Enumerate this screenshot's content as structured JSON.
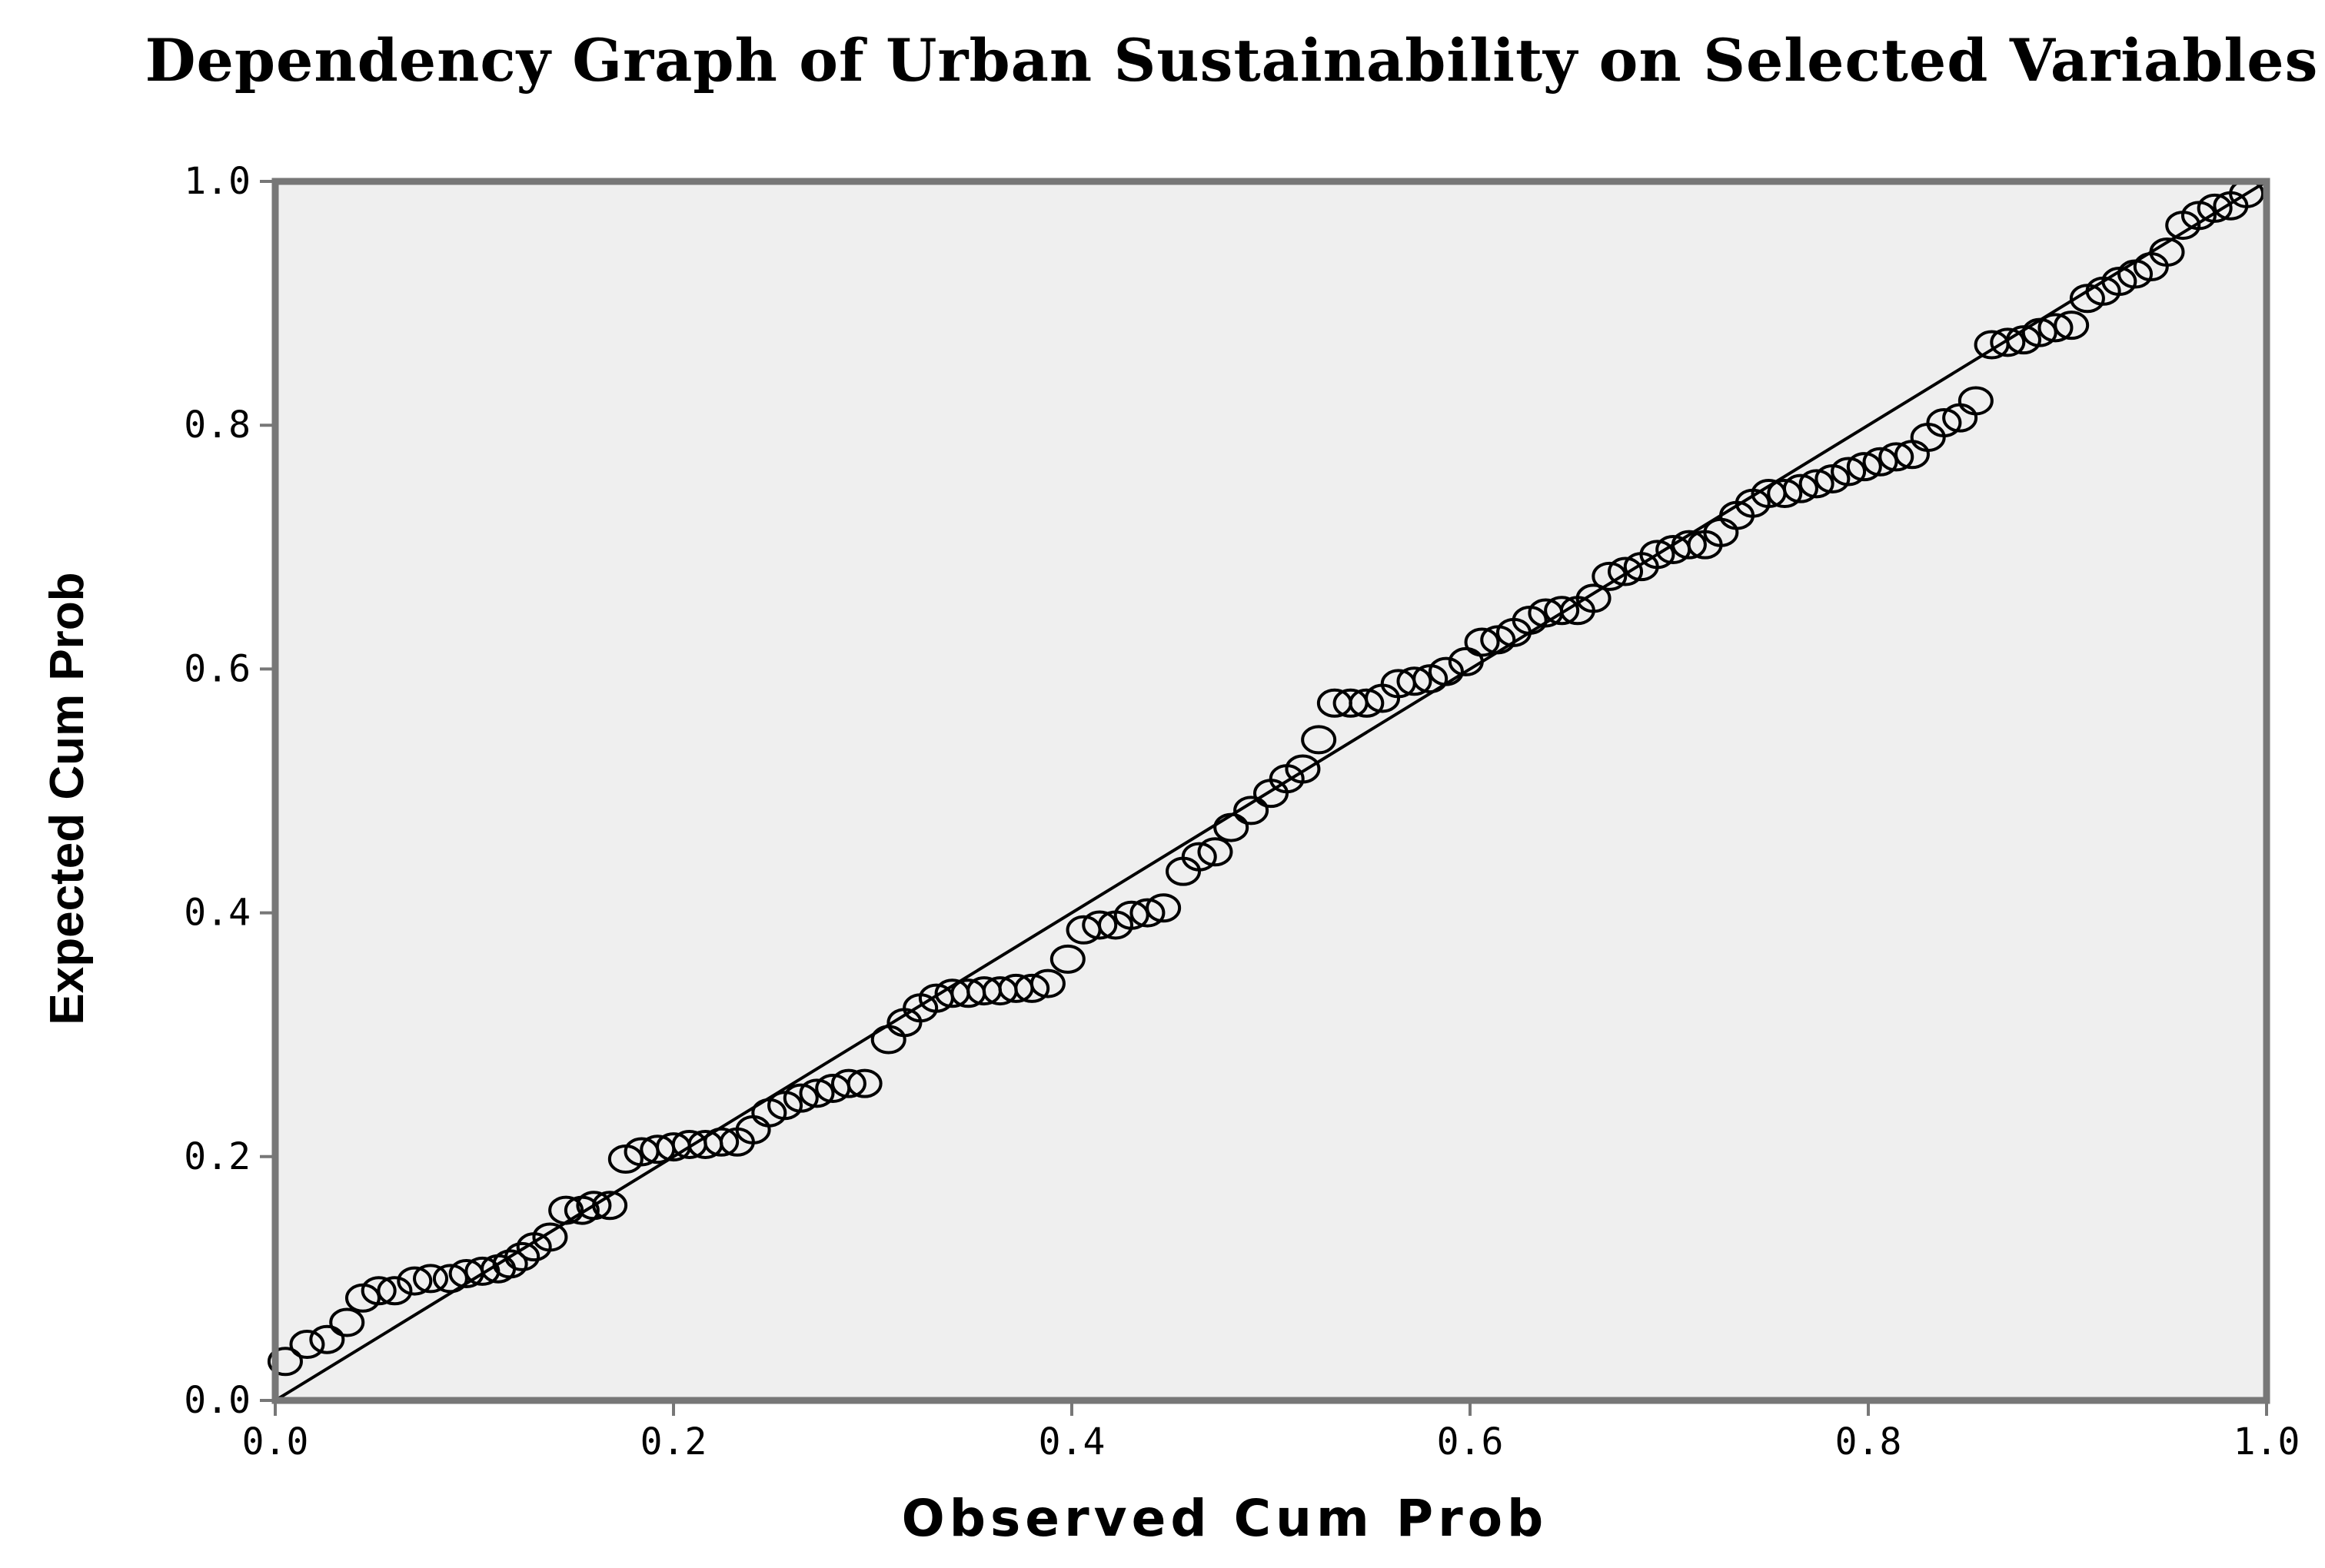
{
  "chart_data": {
    "type": "scatter",
    "title": "Dependency Graph of Urban Sustainability on Selected Variables",
    "xlabel": "Observed Cum Prob",
    "ylabel": "Expected Cum Prob",
    "xlim": [
      0,
      1
    ],
    "ylim": [
      0,
      1
    ],
    "xticks": [
      "0.0",
      "0.2",
      "0.4",
      "0.6",
      "0.8",
      "1.0"
    ],
    "yticks": [
      "0.0",
      "0.2",
      "0.4",
      "0.6",
      "0.8",
      "1.0"
    ],
    "reference_line": {
      "from": [
        0,
        0
      ],
      "to": [
        1,
        1
      ]
    },
    "grid": false,
    "legend": "none",
    "colors": {
      "plot_background": "#efefef",
      "frame": "#777777",
      "marker": "#000000",
      "line": "#000000"
    },
    "points": [
      [
        0.005,
        0.032
      ],
      [
        0.016,
        0.046
      ],
      [
        0.026,
        0.05
      ],
      [
        0.036,
        0.064
      ],
      [
        0.044,
        0.084
      ],
      [
        0.052,
        0.09
      ],
      [
        0.06,
        0.09
      ],
      [
        0.07,
        0.098
      ],
      [
        0.078,
        0.1
      ],
      [
        0.088,
        0.1
      ],
      [
        0.096,
        0.104
      ],
      [
        0.104,
        0.106
      ],
      [
        0.112,
        0.108
      ],
      [
        0.118,
        0.112
      ],
      [
        0.124,
        0.118
      ],
      [
        0.13,
        0.126
      ],
      [
        0.138,
        0.134
      ],
      [
        0.146,
        0.156
      ],
      [
        0.154,
        0.156
      ],
      [
        0.16,
        0.16
      ],
      [
        0.168,
        0.16
      ],
      [
        0.176,
        0.198
      ],
      [
        0.184,
        0.204
      ],
      [
        0.192,
        0.206
      ],
      [
        0.2,
        0.208
      ],
      [
        0.208,
        0.21
      ],
      [
        0.216,
        0.21
      ],
      [
        0.224,
        0.212
      ],
      [
        0.232,
        0.212
      ],
      [
        0.24,
        0.222
      ],
      [
        0.248,
        0.236
      ],
      [
        0.256,
        0.242
      ],
      [
        0.264,
        0.248
      ],
      [
        0.272,
        0.252
      ],
      [
        0.28,
        0.256
      ],
      [
        0.288,
        0.26
      ],
      [
        0.296,
        0.26
      ],
      [
        0.308,
        0.296
      ],
      [
        0.316,
        0.31
      ],
      [
        0.324,
        0.322
      ],
      [
        0.332,
        0.33
      ],
      [
        0.34,
        0.334
      ],
      [
        0.348,
        0.334
      ],
      [
        0.356,
        0.336
      ],
      [
        0.364,
        0.336
      ],
      [
        0.372,
        0.338
      ],
      [
        0.38,
        0.338
      ],
      [
        0.388,
        0.342
      ],
      [
        0.398,
        0.362
      ],
      [
        0.406,
        0.386
      ],
      [
        0.414,
        0.39
      ],
      [
        0.422,
        0.39
      ],
      [
        0.43,
        0.398
      ],
      [
        0.438,
        0.4
      ],
      [
        0.446,
        0.404
      ],
      [
        0.456,
        0.434
      ],
      [
        0.464,
        0.446
      ],
      [
        0.472,
        0.45
      ],
      [
        0.48,
        0.47
      ],
      [
        0.49,
        0.484
      ],
      [
        0.5,
        0.498
      ],
      [
        0.508,
        0.51
      ],
      [
        0.516,
        0.518
      ],
      [
        0.524,
        0.542
      ],
      [
        0.532,
        0.572
      ],
      [
        0.54,
        0.572
      ],
      [
        0.548,
        0.572
      ],
      [
        0.556,
        0.576
      ],
      [
        0.564,
        0.588
      ],
      [
        0.572,
        0.59
      ],
      [
        0.58,
        0.592
      ],
      [
        0.588,
        0.598
      ],
      [
        0.598,
        0.606
      ],
      [
        0.606,
        0.622
      ],
      [
        0.614,
        0.624
      ],
      [
        0.622,
        0.63
      ],
      [
        0.63,
        0.64
      ],
      [
        0.638,
        0.646
      ],
      [
        0.646,
        0.648
      ],
      [
        0.654,
        0.648
      ],
      [
        0.662,
        0.658
      ],
      [
        0.67,
        0.676
      ],
      [
        0.678,
        0.68
      ],
      [
        0.686,
        0.684
      ],
      [
        0.694,
        0.694
      ],
      [
        0.702,
        0.698
      ],
      [
        0.71,
        0.702
      ],
      [
        0.718,
        0.702
      ],
      [
        0.726,
        0.712
      ],
      [
        0.734,
        0.726
      ],
      [
        0.742,
        0.736
      ],
      [
        0.75,
        0.744
      ],
      [
        0.758,
        0.744
      ],
      [
        0.766,
        0.748
      ],
      [
        0.774,
        0.752
      ],
      [
        0.782,
        0.756
      ],
      [
        0.79,
        0.762
      ],
      [
        0.798,
        0.766
      ],
      [
        0.806,
        0.77
      ],
      [
        0.814,
        0.774
      ],
      [
        0.822,
        0.776
      ],
      [
        0.83,
        0.79
      ],
      [
        0.838,
        0.802
      ],
      [
        0.846,
        0.806
      ],
      [
        0.854,
        0.82
      ],
      [
        0.862,
        0.866
      ],
      [
        0.87,
        0.868
      ],
      [
        0.878,
        0.87
      ],
      [
        0.886,
        0.876
      ],
      [
        0.894,
        0.88
      ],
      [
        0.902,
        0.882
      ],
      [
        0.91,
        0.904
      ],
      [
        0.918,
        0.91
      ],
      [
        0.926,
        0.918
      ],
      [
        0.934,
        0.924
      ],
      [
        0.942,
        0.93
      ],
      [
        0.95,
        0.942
      ],
      [
        0.958,
        0.964
      ],
      [
        0.966,
        0.972
      ],
      [
        0.974,
        0.978
      ],
      [
        0.982,
        0.98
      ],
      [
        0.99,
        0.99
      ]
    ]
  }
}
